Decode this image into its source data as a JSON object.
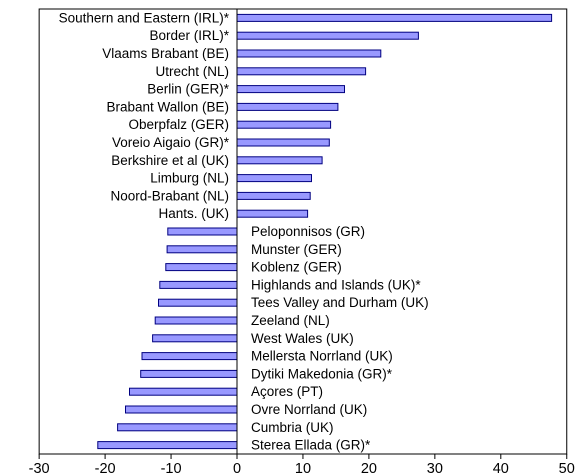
{
  "chart_data": {
    "type": "bar",
    "orientation": "horizontal",
    "title": "",
    "xlabel": "",
    "ylabel": "",
    "xlim": [
      -30,
      50
    ],
    "xticks": [
      -30,
      -20,
      -10,
      0,
      10,
      20,
      30,
      40,
      50
    ],
    "grid": false,
    "colors": {
      "bar_fill": "#9999ff",
      "bar_stroke": "#000080"
    },
    "categories": [
      "Southern and Eastern (IRL)*",
      "Border (IRL)*",
      "Vlaams Brabant (BE)",
      "Utrecht (NL)",
      "Berlin (GER)*",
      "Brabant Wallon (BE)",
      "Oberpfalz (GER)",
      "Voreio Aigaio (GR)*",
      "Berkshire et al (UK)",
      "Limburg (NL)",
      "Noord-Brabant (NL)",
      "Hants. (UK)",
      "Peloponnisos (GR)",
      "Munster (GER)",
      "Koblenz (GER)",
      "Highlands and Islands (UK)*",
      "Tees Valley and Durham (UK)",
      "Zeeland (NL)",
      "West Wales (UK)",
      "Mellersta Norrland (UK)",
      "Dytiki Makedonia (GR)*",
      "Açores (PT)",
      "Ovre Norrland (UK)",
      "Cumbria (UK)",
      "Sterea Ellada (GR)*"
    ],
    "values": [
      47.7,
      27.5,
      21.8,
      19.5,
      16.3,
      15.3,
      14.2,
      14.0,
      12.9,
      11.3,
      11.1,
      10.7,
      -10.5,
      -10.6,
      -10.8,
      -11.7,
      -11.9,
      -12.4,
      -12.8,
      -14.4,
      -14.6,
      -16.3,
      -16.9,
      -18.1,
      -21.1
    ]
  }
}
